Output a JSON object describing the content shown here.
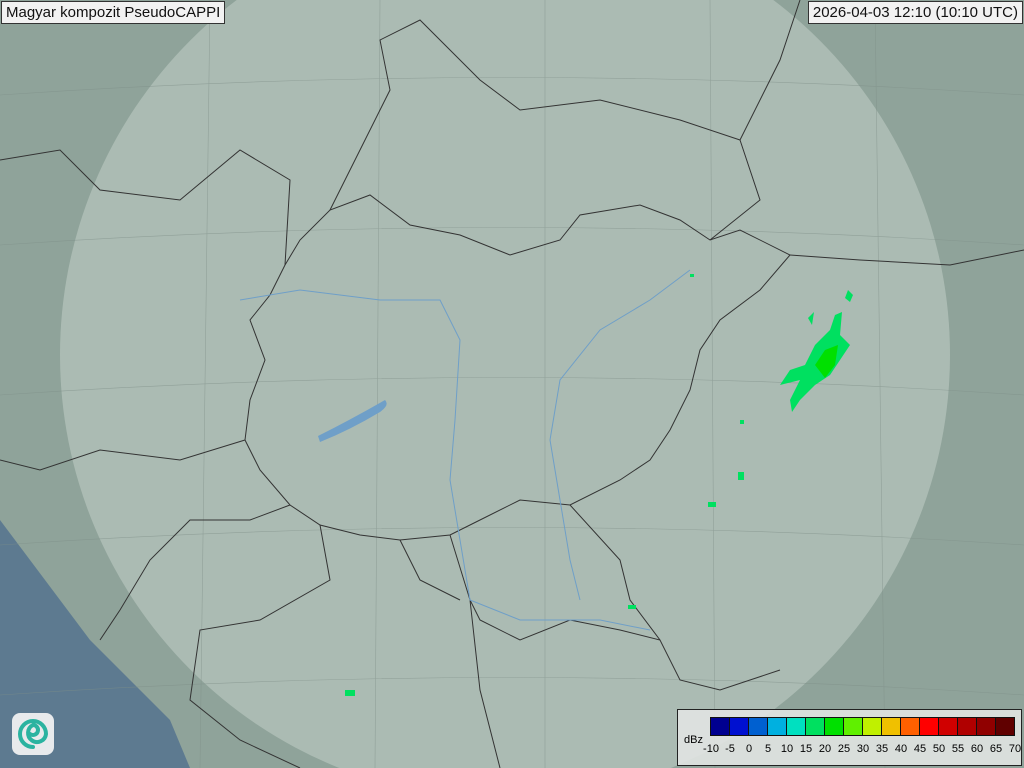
{
  "header": {
    "title": "Magyar kompozit  PseudoCAPPI",
    "timestamp": "2026-04-03 12:10 (10:10 UTC)"
  },
  "legend": {
    "unit": "dBz",
    "ticks": [
      "-10",
      "-5",
      "0",
      "5",
      "10",
      "15",
      "20",
      "25",
      "30",
      "35",
      "40",
      "45",
      "50",
      "55",
      "60",
      "65",
      "70"
    ],
    "colors": [
      "#000090",
      "#0010d0",
      "#0060d0",
      "#00b0e0",
      "#00e0c0",
      "#00e060",
      "#00e000",
      "#60f000",
      "#c0f000",
      "#f0c000",
      "#ff6000",
      "#ff0000",
      "#d00000",
      "#b00000",
      "#900000",
      "#600000"
    ]
  },
  "logo": {
    "icon": "swirl-logo-icon"
  },
  "colors": {
    "land": "#8fa39a",
    "coverage": "#b9c8c0",
    "sea": "#5d7a90",
    "border": "#333333",
    "river": "#6f9fc8",
    "echo": "#00e060"
  }
}
